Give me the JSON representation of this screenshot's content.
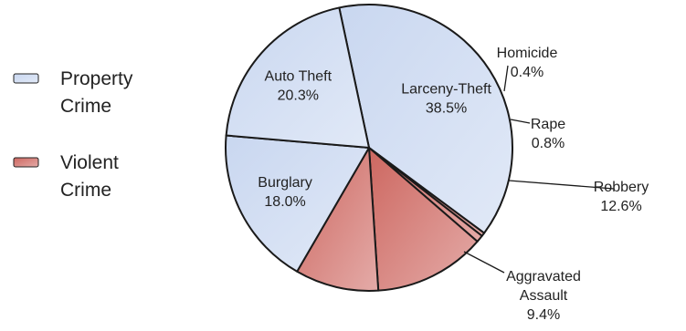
{
  "chart_data": {
    "type": "pie",
    "title": "",
    "legend": {
      "placement": "left",
      "entries": [
        {
          "name": "Property Crime",
          "lines": [
            "Property",
            "Crime"
          ],
          "color": "#c9d7f0"
        },
        {
          "name": "Violent Crime",
          "lines": [
            "Violent",
            "Crime"
          ],
          "color": "#cd6760"
        }
      ]
    },
    "slices": [
      {
        "label": "Larceny-Theft",
        "value": 38.5,
        "value_label": "38.5%",
        "group": "Property Crime",
        "color": "#c9d7f0"
      },
      {
        "label": "Homicide",
        "value": 0.4,
        "value_label": "0.4%",
        "group": "Violent Crime",
        "color": "#cd6760"
      },
      {
        "label": "Rape",
        "value": 0.8,
        "value_label": "0.8%",
        "group": "Violent Crime",
        "color": "#cd6760"
      },
      {
        "label": "Robbery",
        "value": 12.6,
        "value_label": "12.6%",
        "group": "Violent Crime",
        "color": "#cd6760"
      },
      {
        "label": "Aggravated Assault",
        "lines": [
          "Aggravated",
          "Assault"
        ],
        "value": 9.4,
        "value_label": "9.4%",
        "group": "Violent Crime",
        "color": "#cd6760"
      },
      {
        "label": "Burglary",
        "value": 18.0,
        "value_label": "18.0%",
        "group": "Property Crime",
        "color": "#c9d7f0"
      },
      {
        "label": "Auto Theft",
        "value": 20.3,
        "value_label": "20.3%",
        "group": "Property Crime",
        "color": "#c9d7f0"
      }
    ]
  }
}
